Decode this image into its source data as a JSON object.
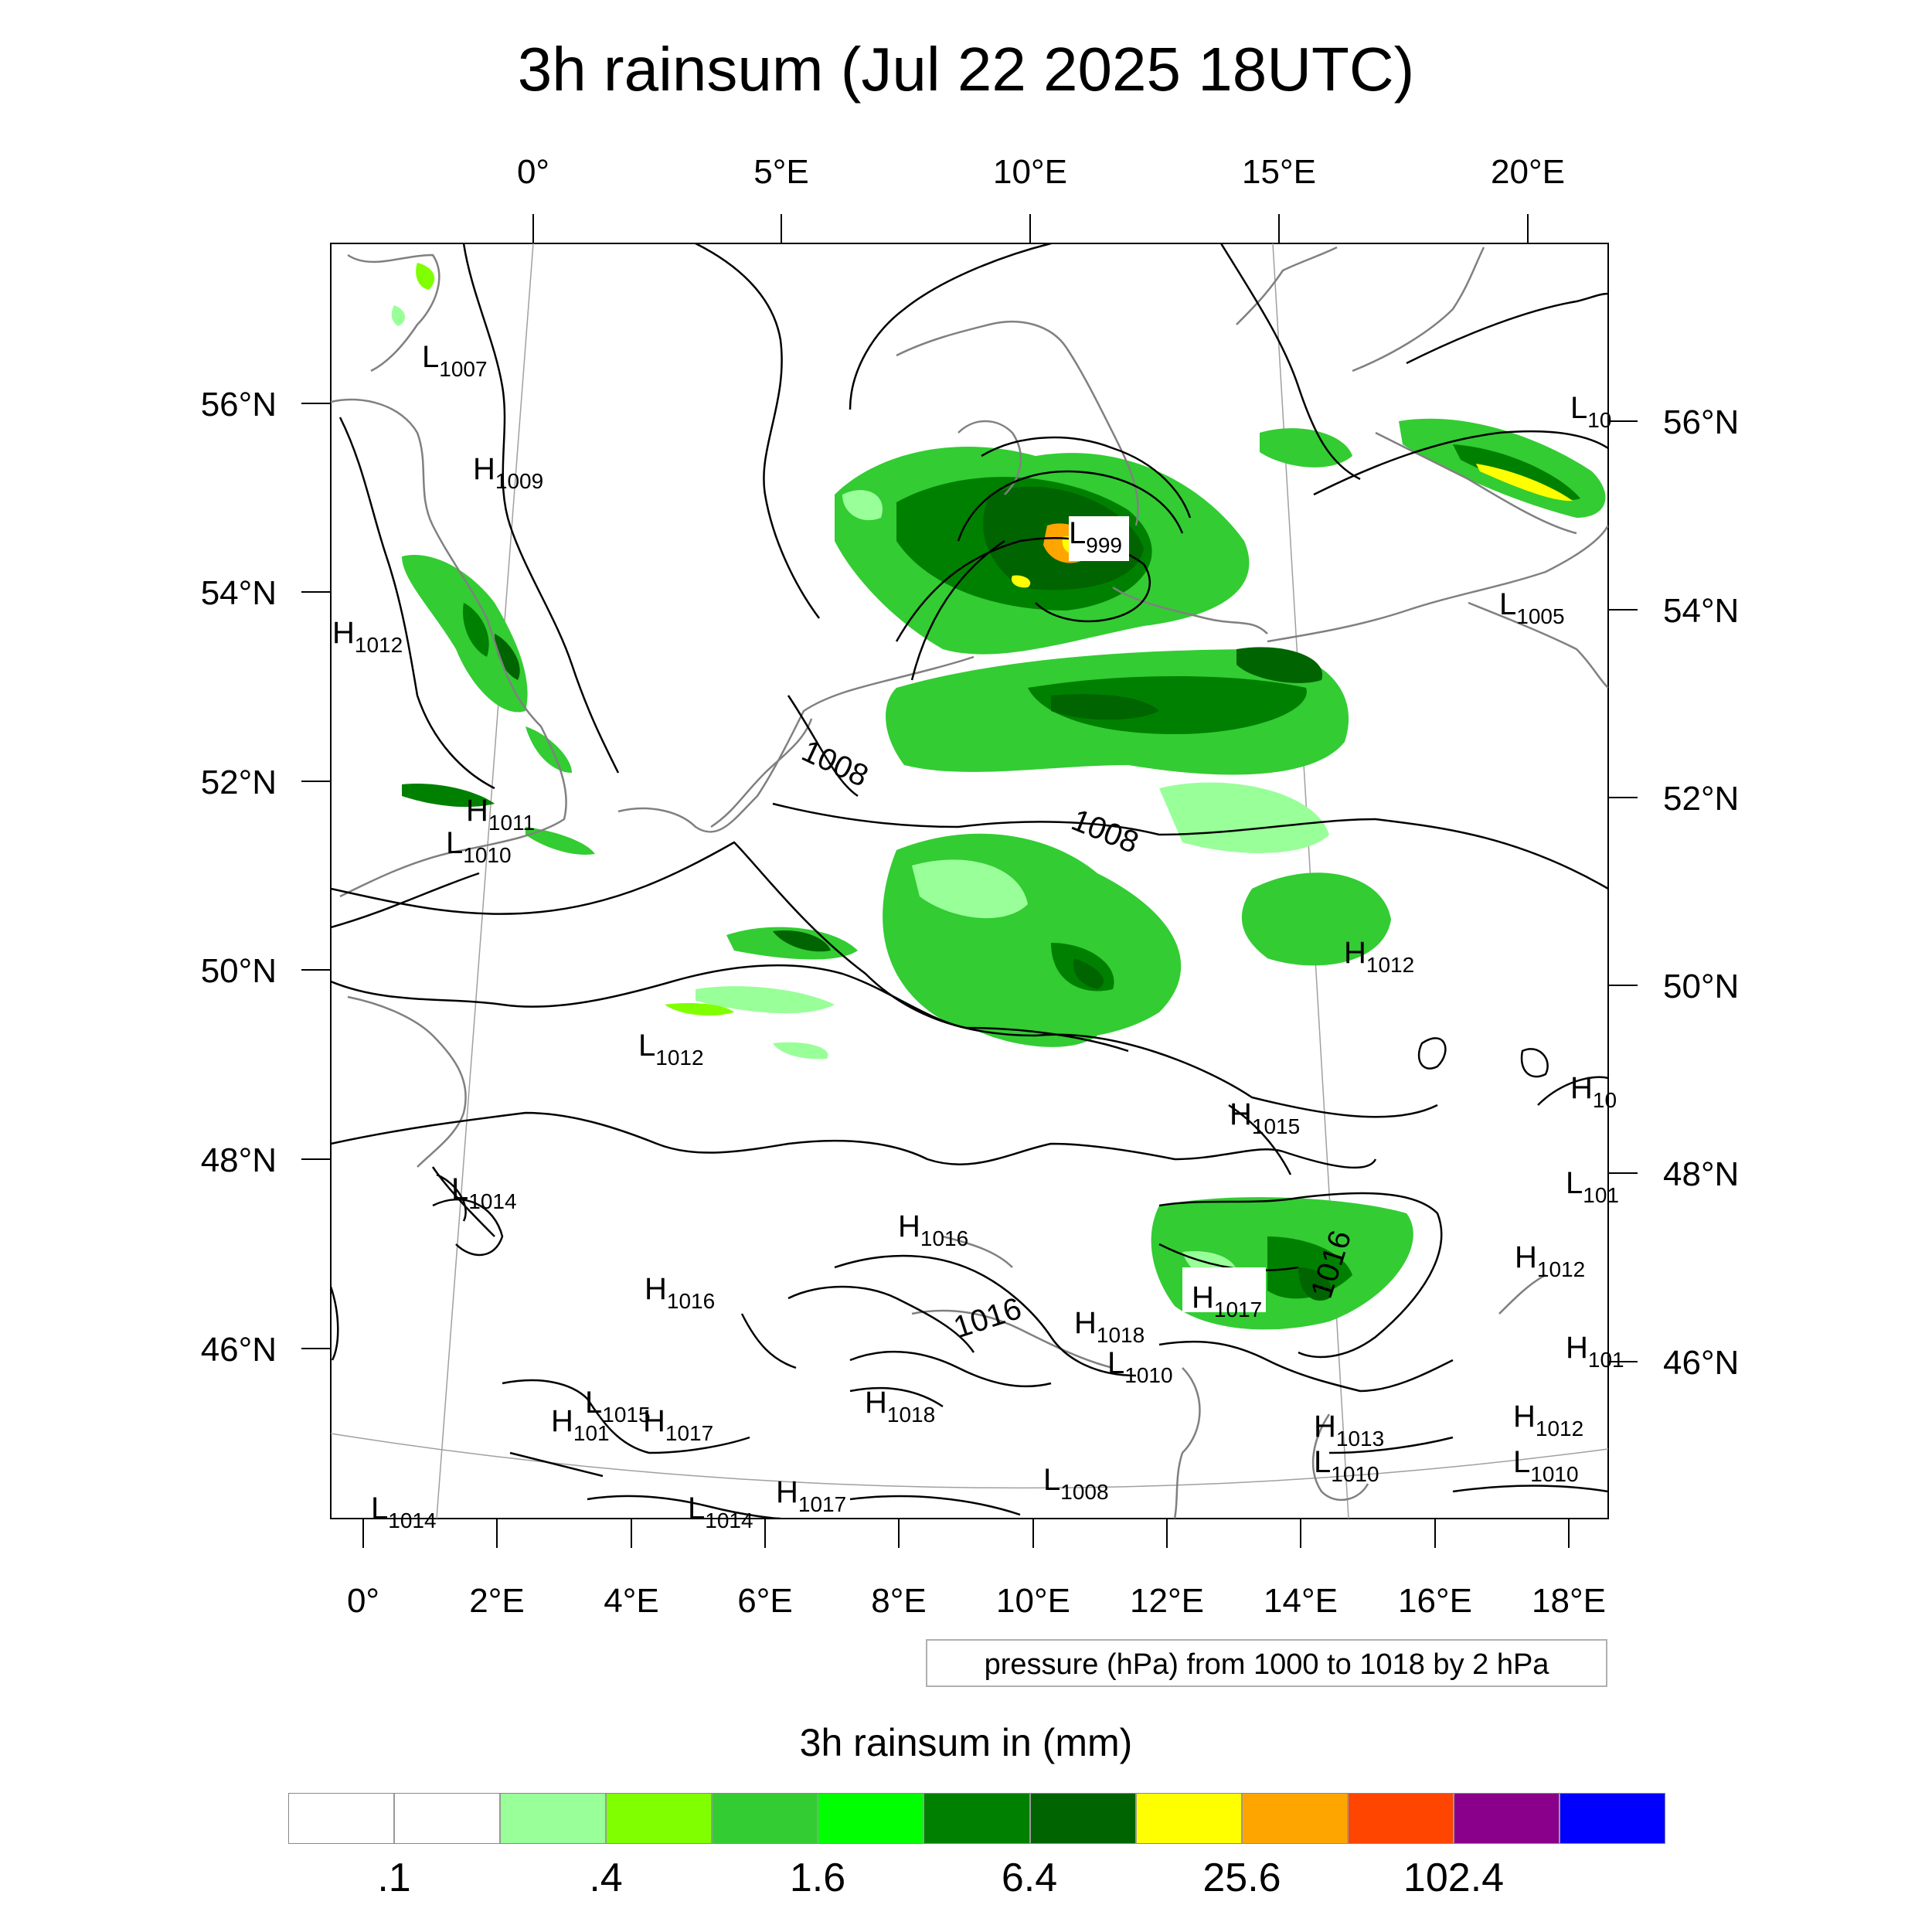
{
  "title": "3h rainsum (Jul 22 2025 18UTC)",
  "top_lon_ticks": [
    "0°",
    "5°E",
    "10°E",
    "15°E",
    "20°E"
  ],
  "bottom_lon_ticks": [
    "0°",
    "2°E",
    "4°E",
    "6°E",
    "8°E",
    "10°E",
    "12°E",
    "14°E",
    "16°E",
    "18°E"
  ],
  "left_lat_ticks": [
    "56°N",
    "54°N",
    "52°N",
    "50°N",
    "48°N",
    "46°N"
  ],
  "right_lat_ticks": [
    "56°N",
    "54°N",
    "52°N",
    "50°N",
    "48°N",
    "46°N"
  ],
  "contour_labels": [
    "1008",
    "1008",
    "1016",
    "1016"
  ],
  "pressure_labels": [
    {
      "letter": "L",
      "value": "1007"
    },
    {
      "letter": "H",
      "value": "1009"
    },
    {
      "letter": "H",
      "value": "1012"
    },
    {
      "letter": "H",
      "value": "1011"
    },
    {
      "letter": "L",
      "value": "1010"
    },
    {
      "letter": "L",
      "value": "1012"
    },
    {
      "letter": "L",
      "value": "1014"
    },
    {
      "letter": "H",
      "value": "1016"
    },
    {
      "letter": "L",
      "value": "1015"
    },
    {
      "letter": "H",
      "value": "101"
    },
    {
      "letter": "H",
      "value": "1017"
    },
    {
      "letter": "L",
      "value": "1014"
    },
    {
      "letter": "L",
      "value": "1014"
    },
    {
      "letter": "H",
      "value": "1017"
    },
    {
      "letter": "H",
      "value": "1018"
    },
    {
      "letter": "L",
      "value": "1008"
    },
    {
      "letter": "H",
      "value": "1016"
    },
    {
      "letter": "H",
      "value": "1018"
    },
    {
      "letter": "L",
      "value": "1010"
    },
    {
      "letter": "H",
      "value": "1017"
    },
    {
      "letter": "H",
      "value": "1015"
    },
    {
      "letter": "H",
      "value": "1012"
    },
    {
      "letter": "H",
      "value": "1013"
    },
    {
      "letter": "L",
      "value": "1010"
    },
    {
      "letter": "H",
      "value": "1012"
    },
    {
      "letter": "L",
      "value": "1010"
    },
    {
      "letter": "L",
      "value": "999"
    },
    {
      "letter": "L",
      "value": "1005"
    },
    {
      "letter": "L",
      "value": "10"
    },
    {
      "letter": "H",
      "value": "10"
    },
    {
      "letter": "L",
      "value": "101"
    },
    {
      "letter": "H",
      "value": "1012"
    },
    {
      "letter": "H",
      "value": "101"
    }
  ],
  "info_box": "pressure (hPa) from 1000 to 1018 by 2 hPa",
  "colorbar": {
    "title": "3h rainsum in (mm)",
    "colors": [
      "#ffffff",
      "#ffffff",
      "#99ff99",
      "#80ff00",
      "#33cc33",
      "#00ff00",
      "#008000",
      "#006400",
      "#ffff00",
      "#ffa500",
      "#ff4500",
      "#8b008b",
      "#0000ff"
    ],
    "labels": [
      ".1",
      ".4",
      "1.6",
      "6.4",
      "25.6",
      "102.4"
    ]
  },
  "colors": {
    "land_outline": "#808080",
    "contour": "#000000",
    "graticule": "#a0a0a0"
  }
}
